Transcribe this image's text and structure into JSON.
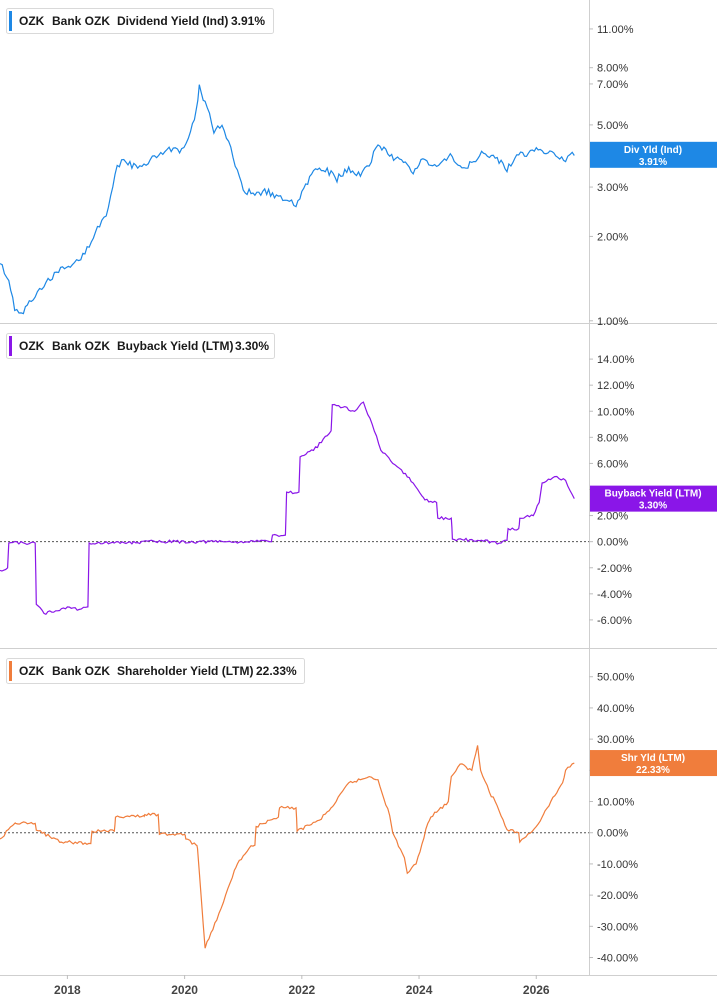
{
  "colors": {
    "dividend": "#1e88e5",
    "buyback": "#8a16e8",
    "shareholder": "#f07d3c",
    "axis": "#bdbdbd",
    "zero_line": "#555555"
  },
  "x_axis": {
    "tick_labels": [
      "2018",
      "2020",
      "2022",
      "2024",
      "2026"
    ]
  },
  "chart_data": [
    {
      "type": "line",
      "legend": {
        "ticker": "OZK",
        "company": "Bank OZK",
        "metric": "Dividend Yield (Ind)",
        "value": "3.91%"
      },
      "tag": {
        "line1": "Div Yld (Ind)",
        "line2": "3.91%"
      },
      "scale": "log",
      "ylim": [
        0.99,
        13.5
      ],
      "y_ticks": [
        1.0,
        2.0,
        3.0,
        5.0,
        7.0,
        8.0,
        11.0
      ],
      "y_tick_labels": [
        "1.00%",
        "2.00%",
        "3.00%",
        "5.00%",
        "7.00%",
        "8.00%",
        "11.00%"
      ],
      "x": [
        2016.85,
        2017.0,
        2017.1,
        2017.25,
        2017.45,
        2017.6,
        2017.85,
        2018.05,
        2018.3,
        2018.55,
        2018.7,
        2018.85,
        2019.0,
        2019.2,
        2019.45,
        2019.7,
        2019.95,
        2020.1,
        2020.2,
        2020.25,
        2020.35,
        2020.5,
        2020.6,
        2020.75,
        2020.9,
        2021.0,
        2021.2,
        2021.4,
        2021.6,
        2021.75,
        2021.9,
        2022.0,
        2022.2,
        2022.4,
        2022.6,
        2022.8,
        2023.0,
        2023.15,
        2023.3,
        2023.5,
        2023.7,
        2023.9,
        2024.1,
        2024.3,
        2024.5,
        2024.7,
        2024.9,
        2025.1,
        2025.3,
        2025.5,
        2025.7,
        2025.9,
        2026.1,
        2026.3,
        2026.5,
        2026.65
      ],
      "y": [
        1.6,
        1.4,
        1.1,
        1.08,
        1.22,
        1.35,
        1.5,
        1.55,
        1.75,
        2.2,
        2.5,
        3.6,
        3.7,
        3.5,
        3.8,
        4.1,
        4.0,
        4.6,
        5.6,
        6.8,
        6.0,
        4.8,
        5.0,
        4.4,
        3.4,
        2.9,
        2.85,
        2.9,
        2.75,
        2.65,
        2.6,
        2.9,
        3.4,
        3.5,
        3.2,
        3.5,
        3.3,
        3.6,
        4.3,
        3.9,
        3.7,
        3.4,
        3.8,
        3.5,
        3.9,
        3.6,
        3.6,
        4.0,
        3.8,
        3.5,
        3.9,
        4.0,
        4.1,
        3.9,
        3.8,
        3.91
      ]
    },
    {
      "type": "line",
      "legend": {
        "ticker": "OZK",
        "company": "Bank OZK",
        "metric": "Buyback Yield (LTM)",
        "value": "3.30%"
      },
      "tag": {
        "line1": "Buyback Yield (LTM)",
        "line2": "3.30%"
      },
      "scale": "linear",
      "ylim": [
        -8.0,
        16.0
      ],
      "y_ticks": [
        -6,
        -4,
        -2,
        0,
        2,
        4,
        6,
        8,
        10,
        12,
        14
      ],
      "y_tick_labels": [
        "-6.00%",
        "-4.00%",
        "-2.00%",
        "0.00%",
        "2.00%",
        "4.00%",
        "6.00%",
        "8.00%",
        "10.00%",
        "12.00%",
        "14.00%"
      ],
      "x": [
        2016.85,
        2016.98,
        2017.0,
        2017.45,
        2017.47,
        2017.6,
        2017.8,
        2018.0,
        2018.2,
        2018.35,
        2018.37,
        2018.8,
        2019.5,
        2020.5,
        2021.2,
        2021.48,
        2021.5,
        2021.72,
        2021.74,
        2021.95,
        2021.97,
        2022.2,
        2022.5,
        2022.52,
        2022.7,
        2022.9,
        2023.05,
        2023.2,
        2023.35,
        2023.55,
        2023.7,
        2023.9,
        2024.05,
        2024.1,
        2024.3,
        2024.32,
        2024.55,
        2024.57,
        2025.0,
        2025.4,
        2025.5,
        2025.52,
        2025.7,
        2025.72,
        2025.95,
        2026.05,
        2026.1,
        2026.35,
        2026.5,
        2026.65
      ],
      "y": [
        -2.2,
        -2.0,
        -0.1,
        -0.1,
        -4.8,
        -5.5,
        -5.3,
        -5.0,
        -5.2,
        -5.0,
        -0.1,
        -0.1,
        0.0,
        0.0,
        0.0,
        0.0,
        0.5,
        0.5,
        3.8,
        3.8,
        6.5,
        7.0,
        8.5,
        10.5,
        10.3,
        10.0,
        10.7,
        9.0,
        7.0,
        6.0,
        5.5,
        4.5,
        3.5,
        3.2,
        3.0,
        1.8,
        1.8,
        0.2,
        0.1,
        -0.1,
        0.1,
        1.0,
        1.0,
        1.8,
        2.0,
        3.0,
        4.5,
        5.0,
        4.7,
        3.3
      ]
    },
    {
      "type": "line",
      "legend": {
        "ticker": "OZK",
        "company": "Bank OZK",
        "metric": "Shareholder Yield (LTM)",
        "value": "22.33%"
      },
      "tag": {
        "line1": "Shr Yld (LTM)",
        "line2": "22.33%"
      },
      "scale": "linear",
      "ylim": [
        -44.0,
        56.0
      ],
      "y_ticks": [
        -40,
        -30,
        -20,
        -10,
        0,
        10,
        20,
        30,
        40,
        50
      ],
      "y_tick_labels": [
        "-40.00%",
        "-30.00%",
        "-20.00%",
        "-10.00%",
        "0.00%",
        "10.00%",
        "20.00%",
        "30.00%",
        "40.00%",
        "50.00%"
      ],
      "x": [
        2016.85,
        2017.1,
        2017.12,
        2017.45,
        2017.47,
        2017.9,
        2018.0,
        2018.4,
        2018.42,
        2018.8,
        2018.82,
        2019.3,
        2019.32,
        2019.55,
        2019.57,
        2020.0,
        2020.02,
        2020.2,
        2020.22,
        2020.35,
        2020.45,
        2020.55,
        2020.7,
        2020.85,
        2020.9,
        2021.1,
        2021.2,
        2021.22,
        2021.45,
        2021.6,
        2021.62,
        2021.9,
        2021.92,
        2022.3,
        2022.5,
        2022.55,
        2022.8,
        2023.0,
        2023.15,
        2023.3,
        2023.5,
        2023.55,
        2023.75,
        2023.8,
        2023.95,
        2024.15,
        2024.2,
        2024.5,
        2024.55,
        2024.7,
        2024.9,
        2025.0,
        2025.05,
        2025.2,
        2025.3,
        2025.5,
        2025.7,
        2025.72,
        2026.0,
        2026.1,
        2026.15,
        2026.45,
        2026.5,
        2026.65
      ],
      "y": [
        -2.0,
        3.0,
        3.0,
        3.0,
        0.8,
        -3.0,
        -3.0,
        -3.5,
        0.5,
        0.5,
        5.0,
        5.5,
        5.8,
        5.8,
        -0.5,
        -0.5,
        -2.0,
        -4.0,
        -5.0,
        -37.0,
        -32.0,
        -28.0,
        -20.0,
        -12.0,
        -10.0,
        -5.0,
        -4.0,
        2.0,
        4.0,
        5.0,
        8.0,
        8.0,
        0.5,
        4.0,
        8.0,
        9.0,
        16.0,
        17.0,
        18.0,
        17.0,
        5.5,
        0.0,
        -8.0,
        -13.0,
        -10.0,
        3.0,
        5.0,
        10.0,
        18.0,
        22.0,
        20.0,
        28.0,
        20.0,
        13.0,
        10.0,
        1.0,
        0.0,
        -3.0,
        2.0,
        5.0,
        7.0,
        16.0,
        20.0,
        22.33
      ]
    }
  ]
}
